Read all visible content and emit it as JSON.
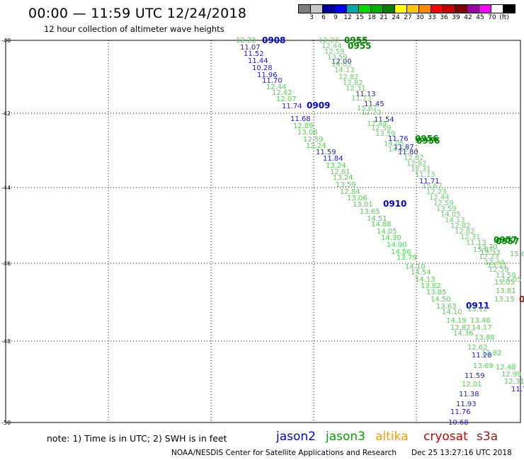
{
  "title": "00:00 — 11:59 UTC 12/24/2018",
  "subtitle": "12 hour collection of altimeter wave heights",
  "color_scale": {
    "unit": "(ft)",
    "swatches": [
      "#7f7f7f",
      "#c8c8c8",
      "#0000a0",
      "#0000ff",
      "#00a8a8",
      "#00dc00",
      "#00b000",
      "#008000",
      "#ffff00",
      "#ffc800",
      "#ff8800",
      "#ff0000",
      "#c80000",
      "#800000",
      "#a000a0",
      "#ff00ff",
      "#ffffff",
      "#000000"
    ],
    "labels": [
      "3",
      "6",
      "9",
      "12",
      "15",
      "18",
      "21",
      "24",
      "27",
      "30",
      "33",
      "36",
      "39",
      "42",
      "45",
      "70"
    ]
  },
  "axes": {
    "lat_labels": [
      "-40",
      "-42",
      "-44",
      "-46",
      "-48",
      "-50"
    ],
    "lon_labels": [
      "0",
      "3",
      "6",
      "9",
      "12",
      "15"
    ]
  },
  "colors": {
    "jason2": "#0000cc",
    "jason3": "#00a000",
    "altika": "#ff9900",
    "cryosat": "#cc0000",
    "s3a": "#8b1a1a",
    "light_green": "#44dd44",
    "dark_green": "#008800",
    "blue_value": "#1a1acc"
  },
  "tracks": {
    "pass_labels": [
      {
        "text": "0908",
        "color": "#0000cc"
      },
      {
        "text": "0909",
        "color": "#0000cc"
      },
      {
        "text": "0910",
        "color": "#0000cc"
      },
      {
        "text": "0911",
        "color": "#0000cc"
      },
      {
        "text": "0955",
        "color": "#008800"
      },
      {
        "text": "0955",
        "color": "#008800"
      },
      {
        "text": "0956",
        "color": "#008800"
      },
      {
        "text": "0956",
        "color": "#008800"
      },
      {
        "text": "0957",
        "color": "#008800"
      },
      {
        "text": "0957",
        "color": "#008800"
      },
      {
        "text": "0",
        "color": "#8b1a1a"
      }
    ],
    "values": [
      {
        "text": "12.23",
        "c": "g"
      },
      {
        "text": "11.07",
        "c": "b"
      },
      {
        "text": "11.52",
        "c": "b"
      },
      {
        "text": "11.44",
        "c": "b"
      },
      {
        "text": "10.28",
        "c": "b"
      },
      {
        "text": "11.96",
        "c": "b"
      },
      {
        "text": "11.70",
        "c": "b"
      },
      {
        "text": "12.44",
        "c": "g"
      },
      {
        "text": "12.42",
        "c": "g"
      },
      {
        "text": "12.07",
        "c": "g"
      },
      {
        "text": "11.74",
        "c": "b"
      },
      {
        "text": "11.68",
        "c": "b"
      },
      {
        "text": "12.89",
        "c": "g"
      },
      {
        "text": "13.08",
        "c": "g"
      },
      {
        "text": "12.59",
        "c": "g"
      },
      {
        "text": "12.24",
        "c": "g"
      },
      {
        "text": "11.59",
        "c": "b"
      },
      {
        "text": "11.84",
        "c": "b"
      },
      {
        "text": "13.24",
        "c": "g"
      },
      {
        "text": "12.61",
        "c": "g"
      },
      {
        "text": "13.24",
        "c": "g"
      },
      {
        "text": "13.59",
        "c": "g"
      },
      {
        "text": "12.84",
        "c": "g"
      },
      {
        "text": "13.06",
        "c": "g"
      },
      {
        "text": "13.01",
        "c": "g"
      },
      {
        "text": "13.65",
        "c": "g"
      },
      {
        "text": "14.51",
        "c": "g"
      },
      {
        "text": "14.88",
        "c": "g"
      },
      {
        "text": "14.05",
        "c": "g"
      },
      {
        "text": "14.30",
        "c": "g"
      },
      {
        "text": "14.90",
        "c": "g"
      },
      {
        "text": "14.56",
        "c": "g"
      },
      {
        "text": "13.79",
        "c": "g"
      },
      {
        "text": "14.10",
        "c": "g"
      },
      {
        "text": "14.54",
        "c": "g"
      },
      {
        "text": "14.13",
        "c": "g"
      },
      {
        "text": "13.82",
        "c": "g"
      },
      {
        "text": "13.85",
        "c": "g"
      },
      {
        "text": "14.50",
        "c": "g"
      },
      {
        "text": "13.63",
        "c": "g"
      },
      {
        "text": "14.10",
        "c": "g"
      },
      {
        "text": "14.19",
        "c": "g"
      },
      {
        "text": "12.82",
        "c": "g"
      },
      {
        "text": "14.36",
        "c": "g"
      },
      {
        "text": "13.12",
        "c": "g"
      },
      {
        "text": "13.46",
        "c": "g"
      },
      {
        "text": "14.17",
        "c": "g"
      },
      {
        "text": "13.88",
        "c": "g"
      },
      {
        "text": "12.62",
        "c": "g"
      },
      {
        "text": "12.82",
        "c": "g"
      },
      {
        "text": "13.69",
        "c": "g"
      },
      {
        "text": "11.28",
        "c": "b"
      },
      {
        "text": "12.48",
        "c": "g"
      },
      {
        "text": "12.99",
        "c": "g"
      },
      {
        "text": "11.59",
        "c": "b"
      },
      {
        "text": "12.01",
        "c": "g"
      },
      {
        "text": "12.31",
        "c": "g"
      },
      {
        "text": "11.38",
        "c": "b"
      },
      {
        "text": "11.7",
        "c": "b"
      },
      {
        "text": "11.93",
        "c": "b"
      },
      {
        "text": "11.76",
        "c": "b"
      },
      {
        "text": "10.68",
        "c": "b"
      },
      {
        "text": "12.00",
        "c": "b"
      },
      {
        "text": "11.13",
        "c": "b"
      },
      {
        "text": "11.45",
        "c": "b"
      },
      {
        "text": "11.54",
        "c": "b"
      },
      {
        "text": "11.76",
        "c": "b"
      },
      {
        "text": "11.87",
        "c": "b"
      },
      {
        "text": "11.80",
        "c": "b"
      },
      {
        "text": "11.71",
        "c": "b"
      },
      {
        "text": "15.67",
        "c": "g"
      },
      {
        "text": "15.05",
        "c": "g"
      },
      {
        "text": "13.81",
        "c": "g"
      },
      {
        "text": "13.15",
        "c": "g"
      },
      {
        "text": "13.70",
        "c": "g"
      },
      {
        "text": "13.33",
        "c": "g"
      },
      {
        "text": "13.11",
        "c": "g"
      }
    ]
  },
  "footer": {
    "note": "note: 1) Time is in UTC; 2) SWH is in feet",
    "satellites": [
      {
        "name": "jason2",
        "color": "#0000cc"
      },
      {
        "name": "jason3",
        "color": "#00a000"
      },
      {
        "name": "altika",
        "color": "#ff9900"
      },
      {
        "name": "cryosat",
        "color": "#cc0000"
      },
      {
        "name": "s3a",
        "color": "#8b1a1a"
      }
    ],
    "credit": "NOAA/NESDIS Center for Satellite Applications and Research",
    "stamp": "Dec 25 13:27:16 UTC 2018"
  }
}
